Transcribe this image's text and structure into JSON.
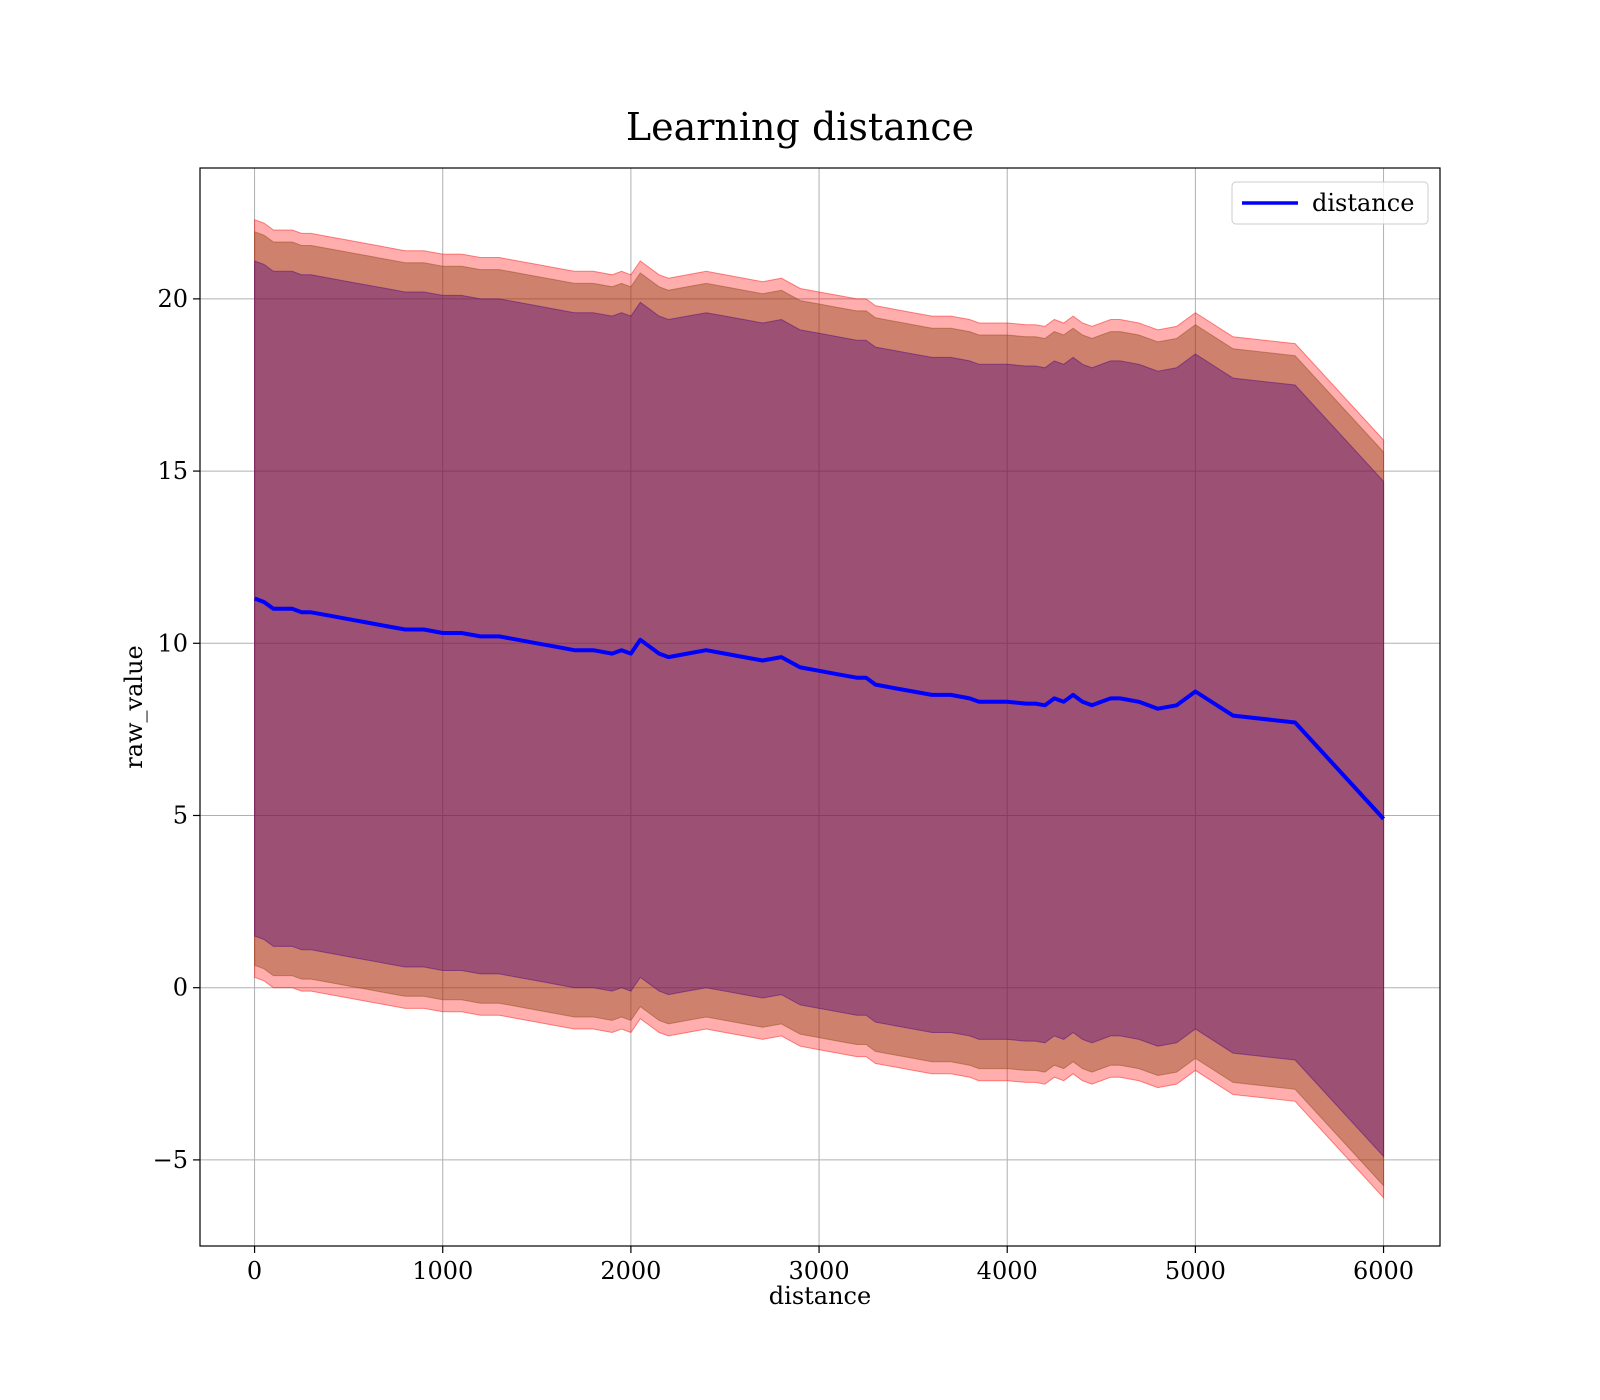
{
  "chart_data": {
    "type": "line",
    "title": "Learning distance",
    "xlabel": "distance",
    "ylabel": "raw_value",
    "xlim": [
      -290,
      6300
    ],
    "ylim": [
      -7.5,
      23.8
    ],
    "xticks": [
      0,
      1000,
      2000,
      3000,
      4000,
      5000,
      6000
    ],
    "xtick_labels": [
      "0",
      "1000",
      "2000",
      "3000",
      "4000",
      "5000",
      "6000"
    ],
    "yticks": [
      -5,
      0,
      5,
      10,
      15,
      20
    ],
    "ytick_labels": [
      "−5",
      "0",
      "5",
      "10",
      "15",
      "20"
    ],
    "grid": true,
    "legend": {
      "position": "top-right",
      "entries": [
        {
          "label": "distance",
          "color": "#0000ff"
        }
      ]
    },
    "colors": {
      "line": "#0000ff",
      "outer_band": "#ff0000",
      "inner_band": "#8b4513",
      "core_band": "#4b0082",
      "grid": "#b0b0b0"
    },
    "series": [
      {
        "name": "distance",
        "x": [
          0,
          50,
          100,
          150,
          200,
          250,
          300,
          400,
          500,
          600,
          700,
          800,
          900,
          1000,
          1100,
          1200,
          1300,
          1400,
          1500,
          1600,
          1700,
          1800,
          1900,
          1950,
          2000,
          2050,
          2100,
          2150,
          2200,
          2300,
          2400,
          2500,
          2600,
          2700,
          2800,
          2900,
          3000,
          3100,
          3200,
          3250,
          3300,
          3400,
          3500,
          3600,
          3700,
          3800,
          3850,
          3900,
          4000,
          4100,
          4150,
          4200,
          4250,
          4300,
          4350,
          4400,
          4450,
          4500,
          4550,
          4600,
          4700,
          4800,
          4900,
          5000,
          5200,
          5530,
          6000
        ],
        "y": [
          11.3,
          11.2,
          11.0,
          11.0,
          11.0,
          10.9,
          10.9,
          10.8,
          10.7,
          10.6,
          10.5,
          10.4,
          10.4,
          10.3,
          10.3,
          10.2,
          10.2,
          10.1,
          10.0,
          9.9,
          9.8,
          9.8,
          9.7,
          9.8,
          9.7,
          10.1,
          9.9,
          9.7,
          9.6,
          9.7,
          9.8,
          9.7,
          9.6,
          9.5,
          9.6,
          9.3,
          9.2,
          9.1,
          9.0,
          9.0,
          8.8,
          8.7,
          8.6,
          8.5,
          8.5,
          8.4,
          8.3,
          8.3,
          8.3,
          8.25,
          8.25,
          8.2,
          8.4,
          8.3,
          8.5,
          8.3,
          8.2,
          8.3,
          8.4,
          8.4,
          8.3,
          8.1,
          8.2,
          8.6,
          7.9,
          7.7,
          4.9
        ]
      }
    ],
    "bands": [
      {
        "upper": [
          22.3,
          22.2,
          22.0,
          22.0,
          22.0,
          21.9,
          21.9,
          21.8,
          21.7,
          21.6,
          21.5,
          21.4,
          21.4,
          21.3,
          21.3,
          21.2,
          21.2,
          21.1,
          21.0,
          20.9,
          20.8,
          20.8,
          20.7,
          20.8,
          20.7,
          21.1,
          20.9,
          20.7,
          20.6,
          20.7,
          20.8,
          20.7,
          20.6,
          20.5,
          20.6,
          20.3,
          20.2,
          20.1,
          20.0,
          20.0,
          19.8,
          19.7,
          19.6,
          19.5,
          19.5,
          19.4,
          19.3,
          19.3,
          19.3,
          19.25,
          19.25,
          19.2,
          19.4,
          19.3,
          19.5,
          19.3,
          19.2,
          19.3,
          19.4,
          19.4,
          19.3,
          19.1,
          19.2,
          19.6,
          18.9,
          18.7,
          15.9
        ],
        "lower": [
          0.3,
          0.2,
          0.0,
          0.0,
          0.0,
          -0.1,
          -0.1,
          -0.2,
          -0.3,
          -0.4,
          -0.5,
          -0.6,
          -0.6,
          -0.7,
          -0.7,
          -0.8,
          -0.8,
          -0.9,
          -1.0,
          -1.1,
          -1.2,
          -1.2,
          -1.3,
          -1.2,
          -1.3,
          -0.9,
          -1.1,
          -1.3,
          -1.4,
          -1.3,
          -1.2,
          -1.3,
          -1.4,
          -1.5,
          -1.4,
          -1.7,
          -1.8,
          -1.9,
          -2.0,
          -2.0,
          -2.2,
          -2.3,
          -2.4,
          -2.5,
          -2.5,
          -2.6,
          -2.7,
          -2.7,
          -2.7,
          -2.75,
          -2.75,
          -2.8,
          -2.6,
          -2.7,
          -2.5,
          -2.7,
          -2.8,
          -2.7,
          -2.6,
          -2.6,
          -2.7,
          -2.9,
          -2.8,
          -2.4,
          -3.1,
          -3.3,
          -6.1
        ]
      },
      {
        "upper": [
          21.95,
          21.85,
          21.65,
          21.65,
          21.65,
          21.55,
          21.55,
          21.45,
          21.35,
          21.25,
          21.15,
          21.05,
          21.05,
          20.95,
          20.95,
          20.85,
          20.85,
          20.75,
          20.65,
          20.55,
          20.45,
          20.45,
          20.35,
          20.45,
          20.35,
          20.75,
          20.55,
          20.35,
          20.25,
          20.35,
          20.45,
          20.35,
          20.25,
          20.15,
          20.25,
          19.95,
          19.85,
          19.75,
          19.65,
          19.65,
          19.45,
          19.35,
          19.25,
          19.15,
          19.15,
          19.05,
          18.95,
          18.95,
          18.95,
          18.9,
          18.9,
          18.85,
          19.05,
          18.95,
          19.15,
          18.95,
          18.85,
          18.95,
          19.05,
          19.05,
          18.95,
          18.75,
          18.85,
          19.25,
          18.55,
          18.35,
          15.55
        ],
        "lower": [
          0.65,
          0.55,
          0.35,
          0.35,
          0.35,
          0.25,
          0.25,
          0.15,
          0.05,
          -0.05,
          -0.15,
          -0.25,
          -0.25,
          -0.35,
          -0.35,
          -0.45,
          -0.45,
          -0.55,
          -0.65,
          -0.75,
          -0.85,
          -0.85,
          -0.95,
          -0.85,
          -0.95,
          -0.55,
          -0.75,
          -0.95,
          -1.05,
          -0.95,
          -0.85,
          -0.95,
          -1.05,
          -1.15,
          -1.05,
          -1.35,
          -1.45,
          -1.55,
          -1.65,
          -1.65,
          -1.85,
          -1.95,
          -2.05,
          -2.15,
          -2.15,
          -2.25,
          -2.35,
          -2.35,
          -2.35,
          -2.4,
          -2.4,
          -2.45,
          -2.25,
          -2.35,
          -2.15,
          -2.35,
          -2.45,
          -2.35,
          -2.25,
          -2.25,
          -2.35,
          -2.55,
          -2.45,
          -2.05,
          -2.75,
          -2.95,
          -5.75
        ]
      },
      {
        "upper": [
          21.1,
          21.0,
          20.8,
          20.8,
          20.8,
          20.7,
          20.7,
          20.6,
          20.5,
          20.4,
          20.3,
          20.2,
          20.2,
          20.1,
          20.1,
          20.0,
          20.0,
          19.9,
          19.8,
          19.7,
          19.6,
          19.6,
          19.5,
          19.6,
          19.5,
          19.9,
          19.7,
          19.5,
          19.4,
          19.5,
          19.6,
          19.5,
          19.4,
          19.3,
          19.4,
          19.1,
          19.0,
          18.9,
          18.8,
          18.8,
          18.6,
          18.5,
          18.4,
          18.3,
          18.3,
          18.2,
          18.1,
          18.1,
          18.1,
          18.05,
          18.05,
          18.0,
          18.2,
          18.1,
          18.3,
          18.1,
          18.0,
          18.1,
          18.2,
          18.2,
          18.1,
          17.9,
          18.0,
          18.4,
          17.7,
          17.5,
          14.7
        ],
        "lower": [
          1.5,
          1.4,
          1.2,
          1.2,
          1.2,
          1.1,
          1.1,
          1.0,
          0.9,
          0.8,
          0.7,
          0.6,
          0.6,
          0.5,
          0.5,
          0.4,
          0.4,
          0.3,
          0.2,
          0.1,
          0.0,
          0.0,
          -0.1,
          0.0,
          -0.1,
          0.3,
          0.1,
          -0.1,
          -0.2,
          -0.1,
          0.0,
          -0.1,
          -0.2,
          -0.3,
          -0.2,
          -0.5,
          -0.6,
          -0.7,
          -0.8,
          -0.8,
          -1.0,
          -1.1,
          -1.2,
          -1.3,
          -1.3,
          -1.4,
          -1.5,
          -1.5,
          -1.5,
          -1.55,
          -1.55,
          -1.6,
          -1.4,
          -1.5,
          -1.3,
          -1.5,
          -1.6,
          -1.5,
          -1.4,
          -1.4,
          -1.5,
          -1.7,
          -1.6,
          -1.2,
          -1.9,
          -2.1,
          -4.9
        ]
      }
    ]
  }
}
